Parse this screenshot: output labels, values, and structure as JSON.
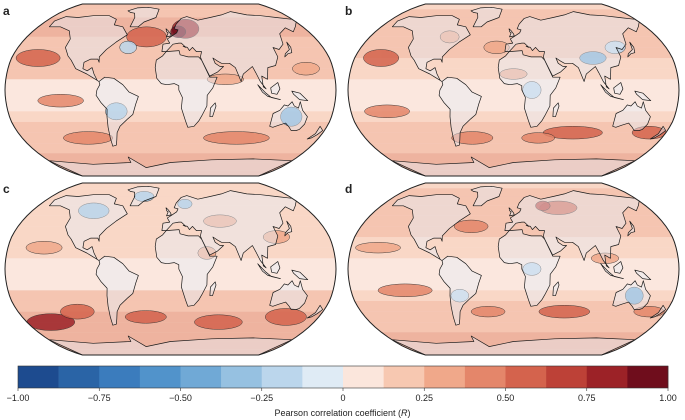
{
  "panels": [
    {
      "letter": "a",
      "id": "a",
      "north_warm": 0.55,
      "south_warm": 0.55,
      "blue_regions": [
        "north-atlantic",
        "amazon",
        "australia"
      ],
      "hotspot": "europe"
    },
    {
      "letter": "b",
      "id": "b",
      "north_warm": 0.4,
      "south_warm": 0.55,
      "blue_regions": [
        "himalaya",
        "central-africa",
        "east-asia"
      ],
      "hotspot": "south-indian"
    },
    {
      "letter": "c",
      "id": "c",
      "north_warm": 0.3,
      "south_warm": 0.7,
      "blue_regions": [
        "canada",
        "greenland",
        "scandinavia"
      ],
      "hotspot": "south-pacific"
    },
    {
      "letter": "d",
      "id": "d",
      "north_warm": 0.4,
      "south_warm": 0.55,
      "blue_regions": [
        "australia",
        "south-america",
        "central-africa"
      ],
      "hotspot": "siberia"
    }
  ],
  "colorbar": {
    "min": -1.0,
    "max": 1.0,
    "step": 0.125,
    "colors": [
      "#1d4b8f",
      "#2a64a6",
      "#3b7cbd",
      "#5193cb",
      "#70a9d6",
      "#96c1e1",
      "#bbd6ec",
      "#dfebf5",
      "#fbe6dc",
      "#f7c8b1",
      "#f0a88a",
      "#e4866a",
      "#d4634d",
      "#bd4137",
      "#9c2227",
      "#6f0d1c"
    ],
    "tick_labels": [
      "−1.00",
      "−0.75",
      "−0.50",
      "−0.25",
      "0",
      "0.25",
      "0.50",
      "0.75",
      "1.00"
    ],
    "label_text": "Pearson correlation coefficient (",
    "label_var": "R",
    "label_close": ")"
  }
}
